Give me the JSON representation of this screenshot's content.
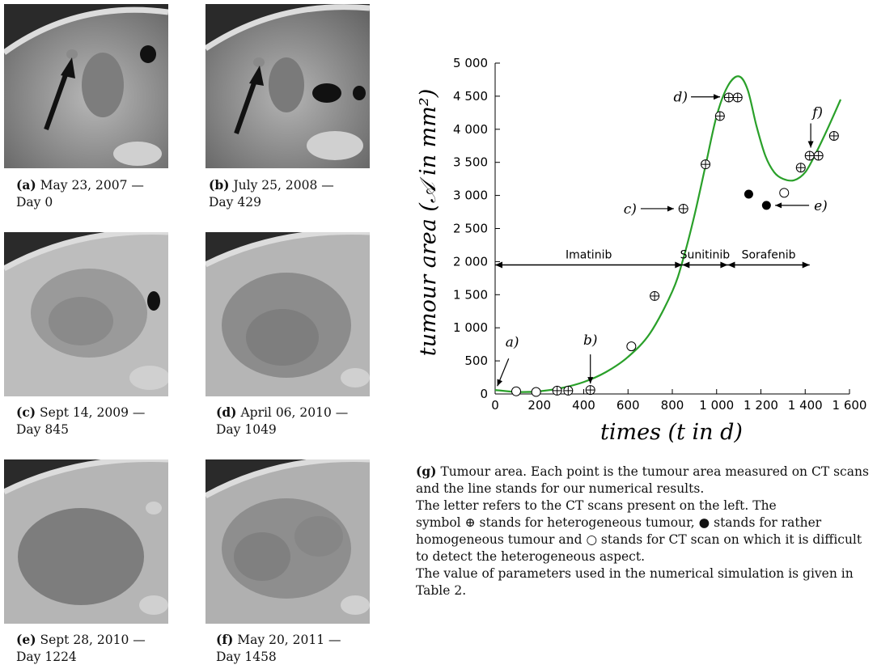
{
  "panels": [
    {
      "letter": "(a)",
      "date": "May 23, 2007 —",
      "day": "Day 0"
    },
    {
      "letter": "(b)",
      "date": "July 25, 2008 —",
      "day": "Day 429"
    },
    {
      "letter": "(c)",
      "date": "Sept 14, 2009 —",
      "day": "Day 845"
    },
    {
      "letter": "(d)",
      "date": "April 06, 2010 —",
      "day": "Day 1049"
    },
    {
      "letter": "(e)",
      "date": "Sept 28, 2010 —",
      "day": "Day 1224"
    },
    {
      "letter": "(f)",
      "date": "May 20, 2011 —",
      "day": "Day 1458"
    }
  ],
  "chart_data": {
    "type": "scatter",
    "xlabel": "times (t in d)",
    "ylabel": "tumour area (𝒜 in mm²)",
    "xlim": [
      0,
      1600
    ],
    "ylim": [
      0,
      5000
    ],
    "xticks": [
      0,
      200,
      400,
      600,
      800,
      1000,
      1200,
      1400,
      1600
    ],
    "xtick_labels": [
      "0",
      "200",
      "400",
      "600",
      "800",
      "1 000",
      "1 200",
      "1 400",
      "1 600"
    ],
    "yticks": [
      0,
      500,
      1000,
      1500,
      2000,
      2500,
      3000,
      3500,
      4000,
      4500,
      5000
    ],
    "ytick_labels": [
      "0",
      "500",
      "1 000",
      "1 500",
      "2 000",
      "2 500",
      "3 000",
      "3 500",
      "4 000",
      "4 500",
      "5 000"
    ],
    "grid": false,
    "line_color": "#2aa02a",
    "curve": {
      "x": [
        0,
        100,
        200,
        300,
        400,
        500,
        600,
        700,
        800,
        850,
        900,
        950,
        1000,
        1050,
        1100,
        1140,
        1180,
        1220,
        1260,
        1300,
        1350,
        1400,
        1450,
        1500,
        1560
      ],
      "y": [
        60,
        30,
        40,
        90,
        180,
        330,
        560,
        920,
        1550,
        2050,
        2700,
        3450,
        4200,
        4650,
        4800,
        4600,
        4050,
        3600,
        3350,
        3250,
        3230,
        3350,
        3650,
        4000,
        4450
      ]
    },
    "series": [
      {
        "name": "heterogeneous tumour",
        "marker": "circle-plus",
        "x": [
          280,
          330,
          430,
          720,
          850,
          950,
          1015,
          1055,
          1095,
          1380,
          1420,
          1460,
          1530
        ],
        "y": [
          50,
          50,
          60,
          1480,
          2800,
          3470,
          4200,
          4480,
          4480,
          3420,
          3600,
          3600,
          3900
        ]
      },
      {
        "name": "rather homogeneous tumour",
        "marker": "filled-circle",
        "x": [
          1145,
          1225
        ],
        "y": [
          3020,
          2850
        ]
      },
      {
        "name": "difficult to detect the heterogeneous aspect",
        "marker": "open-circle",
        "x": [
          95,
          185,
          615,
          1305
        ],
        "y": [
          40,
          30,
          720,
          3040
        ]
      }
    ],
    "treatments": [
      {
        "label": "Imatinib",
        "x_start": 0,
        "x_end": 845
      },
      {
        "label": "Sunitinib",
        "x_start": 845,
        "x_end": 1050
      },
      {
        "label": "Sorafenib",
        "x_start": 1050,
        "x_end": 1420
      }
    ],
    "treatment_y": 1950,
    "annotations": [
      {
        "label": "a)",
        "x": 10,
        "y": 70
      },
      {
        "label": "b)",
        "x": 430,
        "y": 60
      },
      {
        "label": "c)",
        "x": 840,
        "y": 2800
      },
      {
        "label": "d)",
        "x": 1045,
        "y": 4490
      },
      {
        "label": "e)",
        "x": 1235,
        "y": 2850
      },
      {
        "label": "f)",
        "x": 1425,
        "y": 3600
      }
    ]
  },
  "caption": {
    "letter": "(g)",
    "line1": "Tumour area. Each point is the tumour area measured on CT scans and the line stands for our numerical results.",
    "line2": "The letter refers to the CT scans present on the left. The",
    "line3a": "symbol",
    "sym_plus": "⊕",
    "line3b": "stands for heterogeneous tumour,",
    "sym_filled": "●",
    "line3c": "stands for rather homogeneous tumour and",
    "sym_open": "○",
    "line3d": "stands for CT scan on which it is difficult to detect the heterogeneous aspect.",
    "line4": "The value of parameters used in the numerical simulation is given in Table 2."
  }
}
